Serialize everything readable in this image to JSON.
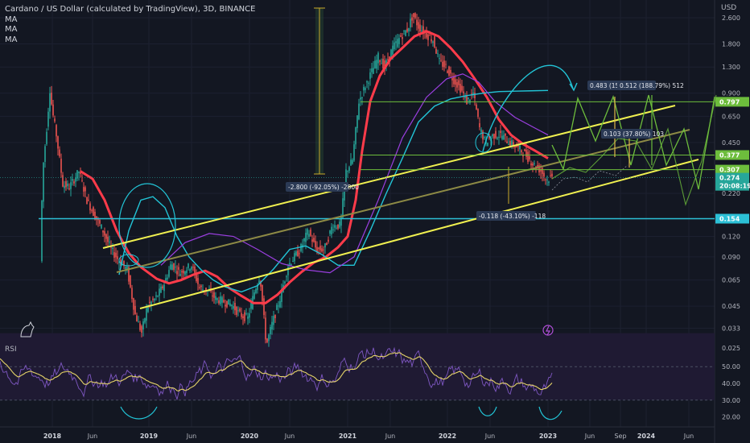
{
  "header": {
    "title": "Cardano / US Dollar (calculated by TradingView), 3D, BINANCE",
    "indicators": [
      "MA",
      "MA",
      "MA"
    ]
  },
  "rsi_pane": {
    "label": "RSI"
  },
  "price_axis": {
    "unit": "USD"
  },
  "colors": {
    "background": "#131722",
    "up": "#26a69a",
    "down": "#ef5350",
    "ma_red": "#ff3b4a",
    "ma_cyan": "#22c4d6",
    "ma_purple": "#9b3fe0",
    "channel_yellow": "#f0f050",
    "projection_green": "#6dbd3c",
    "rsi_line": "#7e57c2",
    "rsi_signal": "#e6d469",
    "rsi_band": "#1f1a33",
    "support_cyan": "#2cc0d6"
  },
  "chart_data": [
    {
      "type": "candlestick",
      "title": "Cardano / US Dollar (calculated by TradingView), 3D, BINANCE",
      "log_scale": true,
      "ylim": [
        0.022,
        3.0
      ],
      "x_ticks": [
        "2018",
        "Jun",
        "2019",
        "Jun",
        "2020",
        "Jun",
        "2021",
        "Jun",
        "2022",
        "Jun",
        "2023",
        "Jun",
        "Sep",
        "2024",
        "Jun"
      ],
      "y_ticks": [
        2.6,
        1.8,
        1.3,
        0.9,
        0.65,
        0.45,
        0.22,
        0.12,
        0.09,
        0.065,
        0.045,
        0.033,
        0.025
      ],
      "price_levels": [
        {
          "label": "0.797",
          "value": 0.797,
          "color": "#6dbd3c"
        },
        {
          "label": "0.377",
          "value": 0.377,
          "color": "#6dbd3c"
        },
        {
          "label": "0.307",
          "value": 0.307,
          "color": "#6dbd3c"
        },
        {
          "label": "0.274",
          "value": 0.274,
          "color": "#26a69a"
        },
        {
          "label": "20:08:19",
          "value": 0.248,
          "color": "#26a69a"
        },
        {
          "label": "0.154",
          "value": 0.154,
          "color": "#2cc0d6"
        }
      ],
      "annotations": [
        "-2.800 (-92.05%) -2800",
        "-0.118 (-43.10%) -118",
        "0.103 (37.80%) 103",
        "0.483 (157.39%) 483",
        "0.512 (188.79%) 512"
      ],
      "series": [
        {
          "name": "MA",
          "color": "#ff3b4a"
        },
        {
          "name": "MA",
          "color": "#22c4d6"
        },
        {
          "name": "MA",
          "color": "#9b3fe0"
        }
      ],
      "grid": true
    },
    {
      "type": "line",
      "title": "RSI",
      "ylim": [
        15,
        65
      ],
      "y_ticks": [
        50.0,
        40.0,
        30.0,
        20.0
      ],
      "overbought": 70,
      "oversold": 30,
      "series": [
        {
          "name": "RSI",
          "color": "#7e57c2"
        },
        {
          "name": "RSI-based MA",
          "color": "#e6d469"
        }
      ]
    }
  ]
}
